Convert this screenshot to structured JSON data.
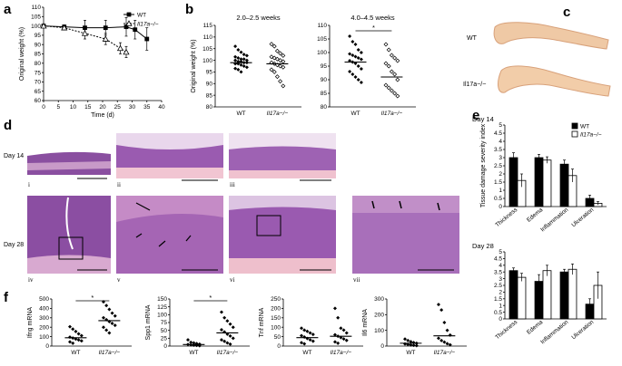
{
  "panel_letters": {
    "a": "a",
    "b": "b",
    "c": "c",
    "d": "d",
    "e": "e",
    "f": "f"
  },
  "genotypes": {
    "wt": "WT",
    "ko": "Il17a−/−"
  },
  "micrograph_labels": {
    "day14": "Day 14",
    "day28": "Day 28",
    "numerals": [
      "i",
      "ii",
      "iii",
      "iv",
      "v",
      "vi",
      "vii"
    ]
  },
  "chart_data": [
    {
      "id": "a",
      "type": "line",
      "xlabel": "Time (d)",
      "ylabel": "Original weight (%)",
      "xlim": [
        0,
        40
      ],
      "ylim": [
        60,
        110
      ],
      "xticks": [
        0,
        5,
        10,
        15,
        20,
        25,
        30,
        35,
        40
      ],
      "yticks": [
        60,
        65,
        70,
        75,
        80,
        85,
        90,
        95,
        100,
        105,
        110
      ],
      "legend": "top-right",
      "series": [
        {
          "name": "WT",
          "marker": "filled-square",
          "x": [
            0,
            7,
            14,
            21,
            28,
            31,
            35
          ],
          "y": [
            100,
            99.5,
            99,
            99,
            99.5,
            98,
            93
          ],
          "err": [
            0,
            1,
            4,
            4,
            5,
            5,
            6
          ]
        },
        {
          "name": "Il17a−/−",
          "marker": "open-triangle",
          "x": [
            0,
            7,
            14,
            21,
            26,
            28
          ],
          "y": [
            100,
            99,
            96,
            93,
            88,
            86
          ],
          "err": [
            0,
            1,
            3,
            3,
            3,
            3
          ]
        }
      ]
    },
    {
      "id": "b1",
      "type": "scatter",
      "title": "2.0–2.5 weeks",
      "ylabel": "Original weight (%)",
      "categories": [
        "WT",
        "Il17a−/−"
      ],
      "ylim": [
        80,
        115
      ],
      "yticks": [
        80,
        85,
        90,
        95,
        100,
        105,
        110,
        115
      ],
      "series": [
        {
          "name": "WT",
          "marker": "filled-diamond",
          "values": [
            106,
            104.5,
            103.5,
            102.5,
            102,
            101.5,
            101,
            100.5,
            100.5,
            100,
            100,
            99.5,
            99.5,
            99,
            99,
            98.5,
            98.5,
            98,
            97.5,
            97,
            96.5,
            96,
            95
          ],
          "mean": 99
        },
        {
          "name": "Il17a−/−",
          "marker": "open-diamond",
          "values": [
            107,
            106,
            104,
            103,
            102,
            101.5,
            101,
            100.5,
            100,
            99.5,
            99,
            98.5,
            98,
            97.5,
            97,
            96,
            95,
            93,
            91,
            89
          ],
          "mean": 98.5
        }
      ]
    },
    {
      "id": "b2",
      "type": "scatter",
      "title": "4.0–4.5 weeks",
      "significance": "*",
      "categories": [
        "WT",
        "Il17a−/−"
      ],
      "ylim": [
        80,
        110
      ],
      "yticks": [
        80,
        85,
        90,
        95,
        100,
        105,
        110
      ],
      "series": [
        {
          "name": "WT",
          "marker": "filled-diamond",
          "values": [
            106,
            104,
            103,
            101,
            100,
            99.5,
            99,
            98.5,
            98,
            97.5,
            97,
            96.5,
            96,
            95,
            94,
            93,
            92,
            91,
            90,
            89
          ],
          "mean": 96.5
        },
        {
          "name": "Il17a−/−",
          "marker": "open-diamond",
          "values": [
            103,
            101,
            99,
            98,
            97,
            96,
            95,
            93,
            92,
            90,
            88,
            87,
            86,
            85,
            84
          ],
          "mean": 91
        }
      ]
    },
    {
      "id": "e1",
      "type": "bar",
      "title": "Day 14",
      "ylabel": "Tissue damage severity index",
      "categories": [
        "Thickness",
        "Edema",
        "Inflammation",
        "Ulceration"
      ],
      "ylim": [
        0,
        5
      ],
      "yticks": [
        0,
        0.5,
        1,
        1.5,
        2,
        2.5,
        3,
        3.5,
        4,
        4.5,
        5
      ],
      "legend": "top-right",
      "series": [
        {
          "name": "WT",
          "color": "#000000",
          "values": [
            3.0,
            3.0,
            2.6,
            0.5
          ],
          "err": [
            0.3,
            0.2,
            0.25,
            0.2
          ]
        },
        {
          "name": "Il17a−/−",
          "color": "#ffffff",
          "values": [
            1.6,
            2.85,
            1.9,
            0.2
          ],
          "err": [
            0.4,
            0.2,
            0.4,
            0.1
          ]
        }
      ]
    },
    {
      "id": "e2",
      "type": "bar",
      "title": "Day 28",
      "categories": [
        "Thickness",
        "Edema",
        "Inflammation",
        "Ulceration"
      ],
      "ylim": [
        0,
        5
      ],
      "yticks": [
        0,
        0.5,
        1,
        1.5,
        2,
        2.5,
        3,
        3.5,
        4,
        4.5,
        5
      ],
      "series": [
        {
          "name": "WT",
          "color": "#000000",
          "values": [
            3.6,
            2.8,
            3.5,
            1.1
          ],
          "err": [
            0.2,
            0.5,
            0.2,
            0.4
          ]
        },
        {
          "name": "Il17a−/−",
          "color": "#ffffff",
          "values": [
            3.1,
            3.6,
            3.7,
            2.5
          ],
          "err": [
            0.3,
            0.4,
            0.4,
            1.0
          ]
        }
      ]
    },
    {
      "id": "f1",
      "type": "scatter",
      "ylabel": "Ifng mRNA",
      "significance": "*",
      "categories": [
        "WT",
        "Il17a−/−"
      ],
      "ylim": [
        0,
        500
      ],
      "yticks": [
        0,
        100,
        200,
        300,
        400,
        500
      ],
      "series": [
        {
          "name": "WT",
          "marker": "filled-diamond",
          "values": [
            205,
            180,
            155,
            130,
            110,
            95,
            85,
            75,
            65,
            55,
            45,
            30
          ],
          "mean": 88
        },
        {
          "name": "Il17a−/−",
          "marker": "filled-diamond",
          "values": [
            470,
            430,
            390,
            350,
            320,
            300,
            280,
            260,
            240,
            220,
            200,
            170,
            140
          ],
          "mean": 270
        }
      ]
    },
    {
      "id": "f2",
      "type": "scatter",
      "ylabel": "Spp1 mRNA",
      "significance": "*",
      "categories": [
        "WT",
        "Il17a−/−"
      ],
      "ylim": [
        0,
        150
      ],
      "yticks": [
        0,
        25,
        50,
        75,
        100,
        125,
        150
      ],
      "series": [
        {
          "name": "WT",
          "marker": "filled-diamond",
          "values": [
            20,
            12,
            10,
            8,
            6,
            5,
            4,
            3,
            2,
            1
          ],
          "mean": 5
        },
        {
          "name": "Il17a−/−",
          "marker": "filled-diamond",
          "values": [
            108,
            90,
            80,
            70,
            60,
            52,
            45,
            38,
            32,
            25,
            20,
            15,
            10,
            6
          ],
          "mean": 42
        }
      ]
    },
    {
      "id": "f3",
      "type": "scatter",
      "ylabel": "Tnf mRNA",
      "categories": [
        "WT",
        "Il17a−/−"
      ],
      "ylim": [
        0,
        250
      ],
      "yticks": [
        0,
        50,
        100,
        150,
        200,
        250
      ],
      "series": [
        {
          "name": "WT",
          "marker": "filled-diamond",
          "values": [
            95,
            85,
            78,
            70,
            62,
            55,
            48,
            40,
            33,
            26,
            18,
            12
          ],
          "mean": 45
        },
        {
          "name": "Il17a−/−",
          "marker": "filled-diamond",
          "values": [
            200,
            150,
            95,
            85,
            70,
            60,
            52,
            45,
            38,
            30,
            22,
            15
          ],
          "mean": 52
        }
      ]
    },
    {
      "id": "f4",
      "type": "scatter",
      "ylabel": "Il6 mRNA",
      "categories": [
        "WT",
        "Il17a−/−"
      ],
      "ylim": [
        0,
        300
      ],
      "yticks": [
        0,
        100,
        200,
        300
      ],
      "series": [
        {
          "name": "WT",
          "marker": "filled-diamond",
          "values": [
            45,
            35,
            28,
            22,
            18,
            14,
            10,
            7,
            5,
            3
          ],
          "mean": 18
        },
        {
          "name": "Il17a−/−",
          "marker": "filled-diamond",
          "values": [
            265,
            230,
            150,
            100,
            70,
            50,
            35,
            25,
            15,
            8
          ],
          "mean": 65
        }
      ]
    }
  ]
}
